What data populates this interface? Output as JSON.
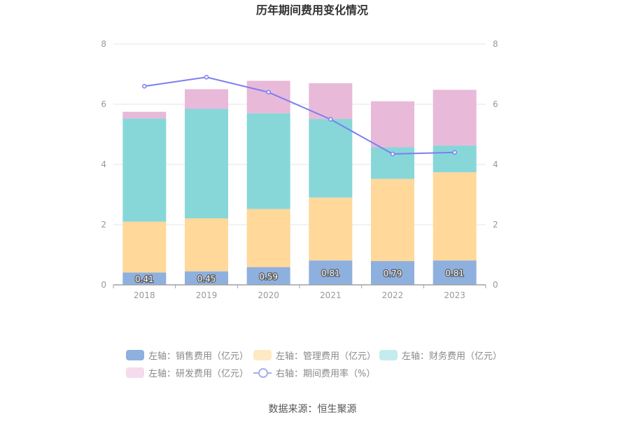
{
  "chart_data": {
    "type": "bar",
    "title": "历年期间费用变化情况",
    "categories": [
      "2018",
      "2019",
      "2020",
      "2021",
      "2022",
      "2023"
    ],
    "ylim": [
      0,
      8
    ],
    "y2lim": [
      0,
      8
    ],
    "yticks": [
      "0",
      "2",
      "4",
      "6",
      "8"
    ],
    "y2ticks": [
      "0",
      "2",
      "4",
      "6",
      "8"
    ],
    "grid": true,
    "legend_position": "bottom",
    "series": [
      {
        "name": "左轴：销售费用（亿元）",
        "kind": "bar",
        "axis": "left",
        "color": "#8eb0de",
        "values": [
          0.41,
          0.45,
          0.59,
          0.81,
          0.79,
          0.81
        ],
        "labels": [
          "0.41",
          "0.45",
          "0.59",
          "0.81",
          "0.79",
          "0.81"
        ]
      },
      {
        "name": "左轴：管理费用（亿元）",
        "kind": "bar",
        "axis": "left",
        "color": "#ffd89a",
        "values": [
          1.69,
          1.76,
          1.93,
          2.09,
          2.73,
          2.93
        ]
      },
      {
        "name": "左轴：财务费用（亿元）",
        "kind": "bar",
        "axis": "left",
        "color": "#87d7d9",
        "values": [
          3.43,
          3.64,
          3.18,
          2.61,
          1.05,
          0.89
        ]
      },
      {
        "name": "左轴：研发费用（亿元）",
        "kind": "bar",
        "axis": "left",
        "color": "#e8b9d9",
        "values": [
          0.22,
          0.65,
          1.08,
          1.19,
          1.53,
          1.85
        ]
      },
      {
        "name": "右轴：期间费用率（%）",
        "kind": "line",
        "axis": "right",
        "color": "#7b7ff0",
        "values": [
          6.6,
          6.9,
          6.4,
          5.5,
          4.35,
          4.4
        ]
      }
    ],
    "legend_swatches": [
      "#8eb0de",
      "#ffe9c4",
      "#c4ecee",
      "#f4dced",
      "#a8b0e8"
    ]
  },
  "source": "数据来源：恒生聚源"
}
